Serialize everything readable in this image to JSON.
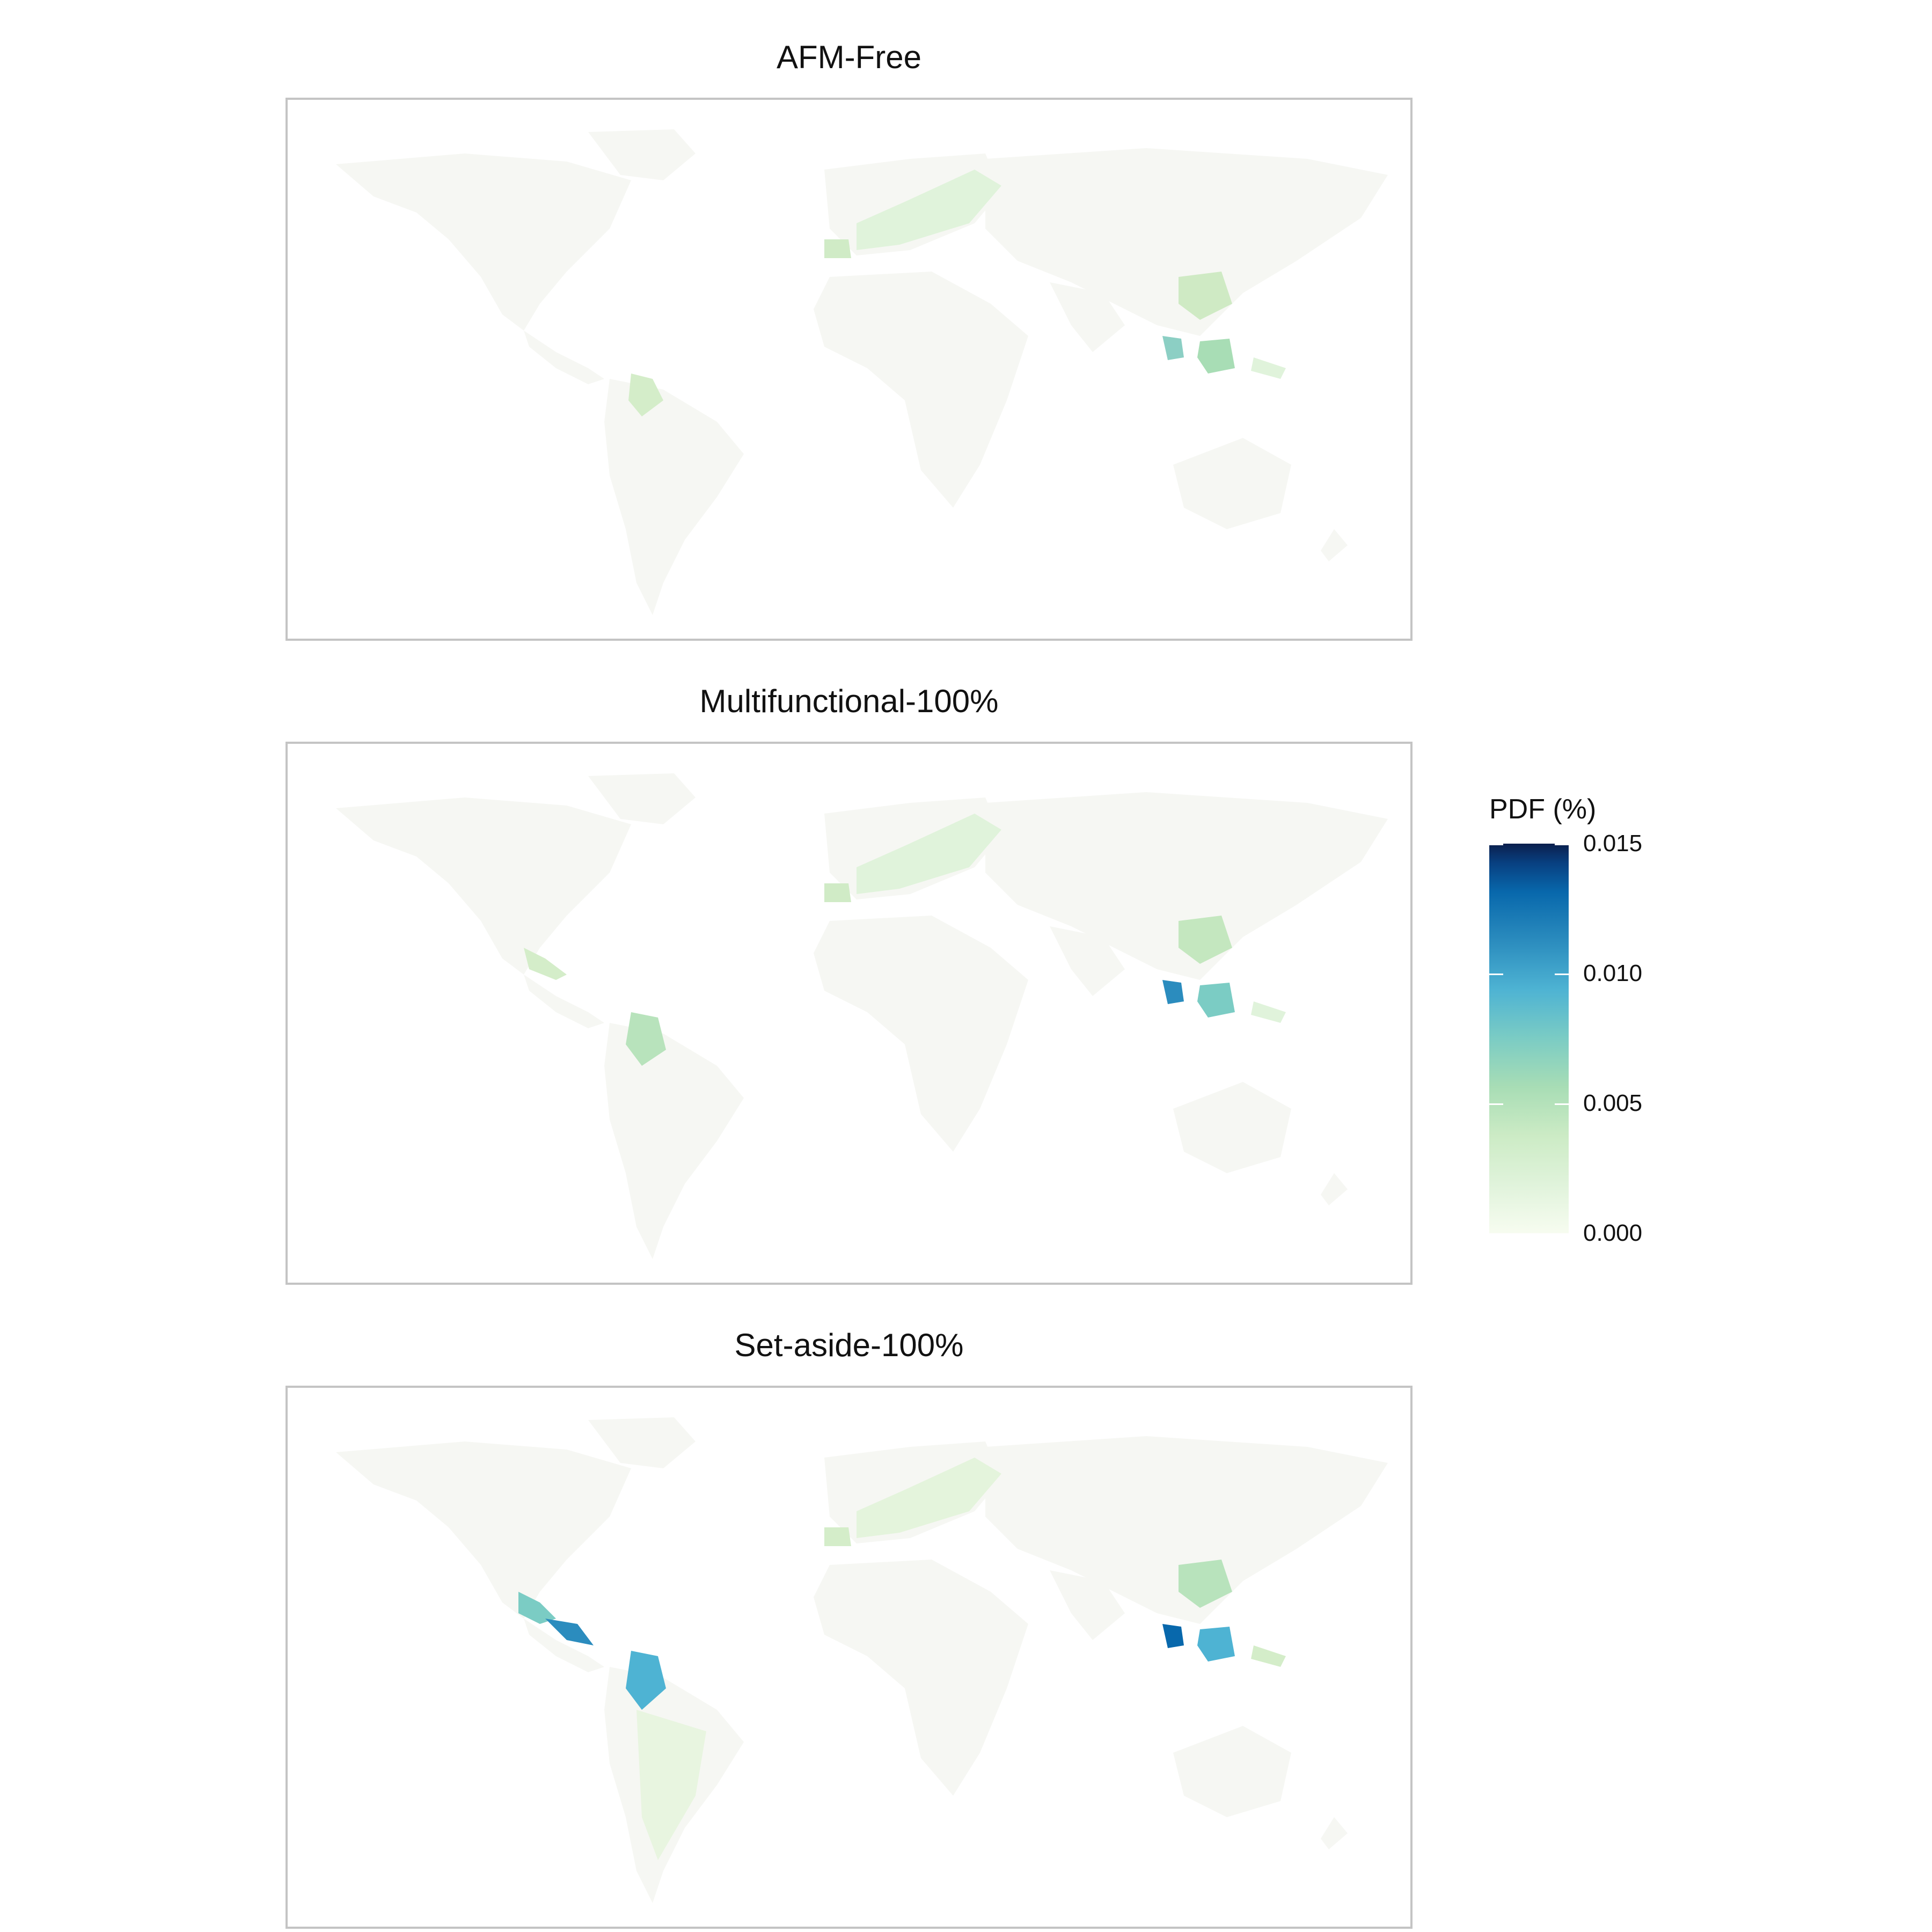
{
  "panels": [
    {
      "title": "AFM-Free"
    },
    {
      "title": "Multifunctional-100%"
    },
    {
      "title": "Set-aside-100%"
    }
  ],
  "legend": {
    "title": "PDF (%)",
    "ticks": [
      "0.015",
      "0.010",
      "0.005",
      "0.000"
    ],
    "range": [
      0,
      0.015
    ],
    "palette": [
      "#f7fcf0",
      "#e0f3db",
      "#ccebc5",
      "#a8ddb5",
      "#7bccc4",
      "#4eb3d3",
      "#2b8cbe",
      "#0868ac",
      "#084081",
      "#0b1f4d"
    ]
  },
  "colors": {
    "land_base": "#f6f7f3",
    "land_temperate_low": "#e4f4dc",
    "land_temperate_mid": "#d4edc9",
    "tropical_mid": "#7bccc4",
    "tropical_high": "#2b8cbe",
    "tropical_peak": "#0868ac",
    "frame": "#c4c4c4"
  }
}
